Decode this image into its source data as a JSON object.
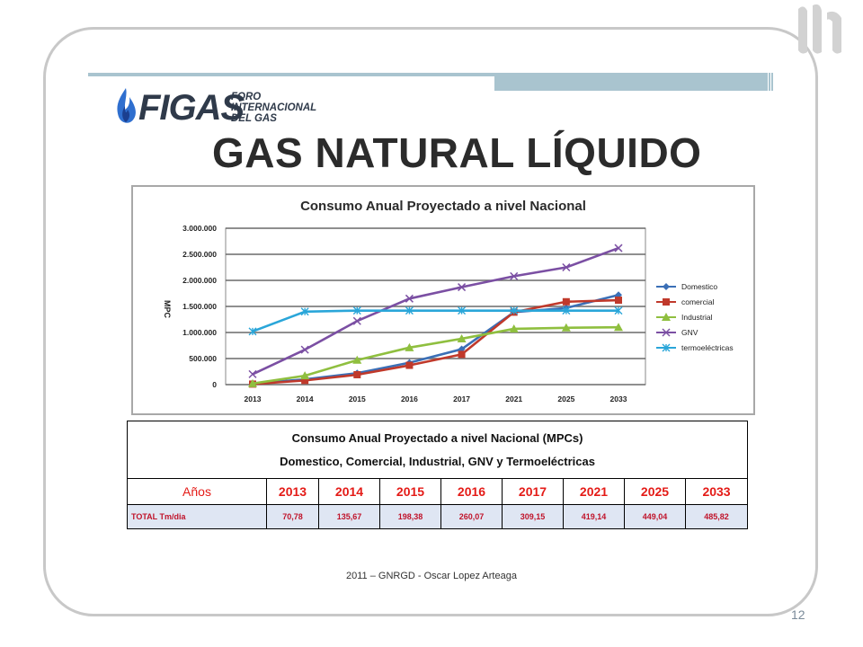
{
  "logo": {
    "main": "FIGAS",
    "sub": [
      "FORO",
      "INTERNACIONAL",
      "DEL GAS"
    ]
  },
  "slide": {
    "title": "GAS NATURAL LÍQUIDO",
    "footer": "2011 – GNRGD - Oscar Lopez Arteaga",
    "page_number": "12"
  },
  "chart_data": {
    "type": "line",
    "title": "Consumo Anual Proyectado a nivel Nacional",
    "ylabel": "MPC",
    "xlabel": "",
    "categories": [
      "2013",
      "2014",
      "2015",
      "2016",
      "2017",
      "2021",
      "2025",
      "2033"
    ],
    "ylim": [
      0,
      3000000
    ],
    "yticks": [
      0,
      500000,
      1000000,
      1500000,
      2000000,
      2500000,
      3000000
    ],
    "ytick_labels": [
      "0",
      "500.000",
      "1.000.000",
      "1.500.000",
      "2.000.000",
      "2.500.000",
      "3.000.000"
    ],
    "grid": true,
    "legend_position": "right",
    "series": [
      {
        "name": "Domestico",
        "color": "#3b6fb6",
        "marker": "diamond",
        "values": [
          20000,
          100000,
          220000,
          420000,
          680000,
          1390000,
          1470000,
          1720000
        ]
      },
      {
        "name": "comercial",
        "color": "#c0392b",
        "marker": "square",
        "values": [
          10000,
          80000,
          190000,
          370000,
          580000,
          1390000,
          1590000,
          1620000
        ]
      },
      {
        "name": "Industrial",
        "color": "#8fbf3f",
        "marker": "triangle",
        "values": [
          20000,
          170000,
          470000,
          710000,
          880000,
          1070000,
          1090000,
          1100000
        ]
      },
      {
        "name": "GNV",
        "color": "#7b4fa3",
        "marker": "x",
        "values": [
          200000,
          670000,
          1220000,
          1650000,
          1870000,
          2080000,
          2250000,
          2620000
        ]
      },
      {
        "name": "termoeléctricas",
        "color": "#2aa6d9",
        "marker": "star",
        "values": [
          1020000,
          1400000,
          1420000,
          1420000,
          1420000,
          1420000,
          1420000,
          1420000
        ]
      }
    ]
  },
  "table": {
    "title": "Consumo Anual Proyectado a nivel Nacional (MPCs)",
    "subtitle": "Domestico, Comercial, Industrial, GNV y Termoeléctricas",
    "years_label": "Años",
    "years": [
      "2013",
      "2014",
      "2015",
      "2016",
      "2017",
      "2021",
      "2025",
      "2033"
    ],
    "row_label": "TOTAL  Tm/dia",
    "values": [
      "70,78",
      "135,67",
      "198,38",
      "260,07",
      "309,15",
      "419,14",
      "449,04",
      "485,82"
    ]
  }
}
